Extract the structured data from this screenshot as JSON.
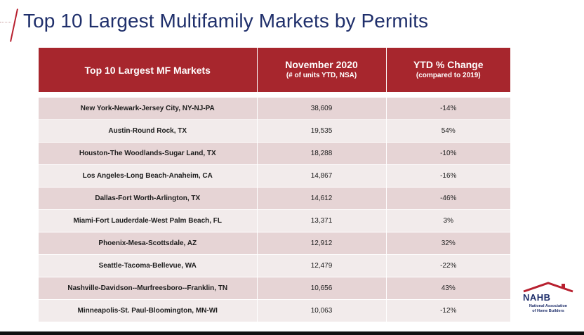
{
  "slide": {
    "title": "Top 10 Largest Multifamily Markets by Permits"
  },
  "table": {
    "headers": {
      "col1": "Top 10 Largest MF Markets",
      "col2_main": "November 2020",
      "col2_sub": "(# of units YTD, NSA)",
      "col3_main": "YTD % Change",
      "col3_sub": "(compared to 2019)"
    },
    "rows": [
      {
        "market": "New York-Newark-Jersey City, NY-NJ-PA",
        "units": "38,609",
        "change": "-14%"
      },
      {
        "market": "Austin-Round Rock, TX",
        "units": "19,535",
        "change": "54%"
      },
      {
        "market": "Houston-The Woodlands-Sugar Land, TX",
        "units": "18,288",
        "change": "-10%"
      },
      {
        "market": "Los Angeles-Long Beach-Anaheim, CA",
        "units": "14,867",
        "change": "-16%"
      },
      {
        "market": "Dallas-Fort Worth-Arlington, TX",
        "units": "14,612",
        "change": "-46%"
      },
      {
        "market": "Miami-Fort Lauderdale-West Palm Beach, FL",
        "units": "13,371",
        "change": "3%"
      },
      {
        "market": "Phoenix-Mesa-Scottsdale, AZ",
        "units": "12,912",
        "change": "32%"
      },
      {
        "market": "Seattle-Tacoma-Bellevue, WA",
        "units": "12,479",
        "change": "-22%"
      },
      {
        "market": "Nashville-Davidson--Murfreesboro--Franklin, TN",
        "units": "10,656",
        "change": "43%"
      },
      {
        "market": "Minneapolis-St. Paul-Bloomington, MN-WI",
        "units": "10,063",
        "change": "-12%"
      }
    ]
  },
  "logo": {
    "name": "NAHB",
    "subtitle_line1": "National Association",
    "subtitle_line2": "of Home Builders",
    "icon": "house-roof-icon"
  },
  "colors": {
    "header_bg": "#a7262d",
    "title": "#1f2f6b",
    "row_dark": "#e6d4d5",
    "row_light": "#f2ebeb"
  }
}
